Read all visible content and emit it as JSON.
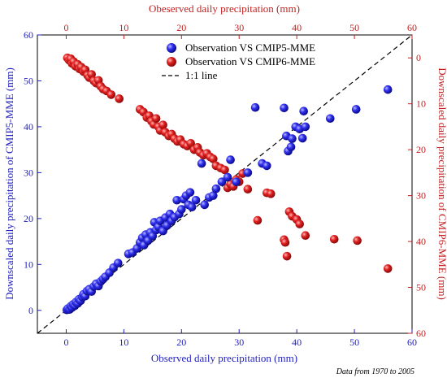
{
  "chart_data": {
    "type": "scatter",
    "title": "",
    "xlabel_bottom": "Observed daily precipitation (mm)",
    "ylabel_left": "Downscaled daily precipitation of CMIP5-MME (mm)",
    "xlabel_top": "Obeserved daily precipitation (mm)",
    "ylabel_right": "Downscaled daily precipitation of CMIP6-MME (mm)",
    "note": "Data from 1970 to 2005",
    "axes": {
      "bottom": {
        "min": -5,
        "max": 60,
        "ticks": [
          0,
          10,
          20,
          30,
          40,
          50,
          60
        ]
      },
      "left": {
        "min": -5,
        "max": 60,
        "ticks": [
          0,
          10,
          20,
          30,
          40,
          50,
          60
        ]
      },
      "top": {
        "min": -5,
        "max": 60,
        "ticks": [
          0,
          10,
          20,
          30,
          40,
          50,
          60
        ]
      },
      "right": {
        "min": -5,
        "max": 60,
        "ticks": [
          0,
          10,
          20,
          30,
          40,
          50,
          60
        ],
        "inverted": true
      }
    },
    "grid": false,
    "legend_position": "top-center",
    "legend": [
      {
        "label": "Observation VS CMIP5-MME",
        "marker": "sphere",
        "color": "#2424e0"
      },
      {
        "label": "Observation VS CMIP6-MME",
        "marker": "sphere",
        "color": "#d42020"
      },
      {
        "label": "1:1 line",
        "marker": "dashed-line",
        "color": "#000000"
      }
    ],
    "series": [
      {
        "name": "Observation VS CMIP5-MME",
        "axes": "bottom-left",
        "color": "#2424e0",
        "points": [
          [
            0.1,
            0.1
          ],
          [
            0.3,
            0.4
          ],
          [
            0.6,
            0.2
          ],
          [
            0.8,
            0.9
          ],
          [
            1.0,
            0.6
          ],
          [
            1.2,
            1.3
          ],
          [
            1.5,
            1.0
          ],
          [
            1.7,
            1.8
          ],
          [
            2.0,
            1.5
          ],
          [
            2.2,
            2.4
          ],
          [
            2.5,
            2.1
          ],
          [
            2.8,
            2.9
          ],
          [
            3.0,
            3.5
          ],
          [
            3.3,
            3.1
          ],
          [
            3.6,
            4.2
          ],
          [
            4.0,
            4.6
          ],
          [
            4.4,
            4.1
          ],
          [
            4.8,
            5.2
          ],
          [
            5.2,
            5.8
          ],
          [
            5.6,
            5.3
          ],
          [
            6.0,
            6.3
          ],
          [
            6.4,
            6.8
          ],
          [
            6.8,
            7.3
          ],
          [
            7.5,
            8.2
          ],
          [
            8.2,
            9.3
          ],
          [
            9.0,
            10.3
          ],
          [
            10.8,
            12.3
          ],
          [
            11.5,
            12.6
          ],
          [
            12.3,
            13.5
          ],
          [
            12.8,
            14.8
          ],
          [
            13.2,
            15.8
          ],
          [
            13.5,
            14.2
          ],
          [
            13.8,
            16.5
          ],
          [
            14.2,
            15.2
          ],
          [
            14.6,
            17.0
          ],
          [
            15.0,
            16.2
          ],
          [
            15.3,
            19.2
          ],
          [
            15.6,
            17.5
          ],
          [
            16.0,
            18.2
          ],
          [
            16.3,
            19.5
          ],
          [
            16.8,
            17.3
          ],
          [
            17.2,
            20.2
          ],
          [
            17.5,
            18.5
          ],
          [
            18.0,
            21.0
          ],
          [
            18.3,
            19.5
          ],
          [
            18.8,
            20.3
          ],
          [
            19.2,
            24.0
          ],
          [
            19.6,
            21.0
          ],
          [
            20.0,
            22.0
          ],
          [
            20.4,
            24.2
          ],
          [
            20.8,
            25.0
          ],
          [
            21.2,
            23.0
          ],
          [
            21.5,
            25.7
          ],
          [
            21.8,
            22.5
          ],
          [
            22.5,
            24.0
          ],
          [
            23.5,
            32.0
          ],
          [
            24.0,
            23.0
          ],
          [
            24.8,
            24.6
          ],
          [
            25.5,
            25.0
          ],
          [
            26.0,
            26.5
          ],
          [
            27.0,
            28.0
          ],
          [
            28.0,
            29.0
          ],
          [
            28.5,
            32.8
          ],
          [
            29.5,
            28.0
          ],
          [
            31.5,
            30.0
          ],
          [
            32.8,
            44.2
          ],
          [
            34.0,
            32.0
          ],
          [
            34.8,
            31.5
          ],
          [
            37.8,
            44.1
          ],
          [
            38.2,
            38.0
          ],
          [
            38.5,
            34.7
          ],
          [
            39.0,
            35.6
          ],
          [
            39.2,
            37.4
          ],
          [
            39.8,
            40.0
          ],
          [
            40.5,
            39.5
          ],
          [
            41.2,
            43.4
          ],
          [
            41.5,
            40.0
          ],
          [
            41.0,
            37.5
          ],
          [
            45.8,
            41.8
          ],
          [
            50.3,
            43.8
          ],
          [
            55.8,
            48.1
          ]
        ]
      },
      {
        "name": "Observation VS CMIP6-MME",
        "axes": "top-right",
        "color": "#d42020",
        "points": [
          [
            0.2,
            0.0
          ],
          [
            0.5,
            0.5
          ],
          [
            0.8,
            0.2
          ],
          [
            1.0,
            1.2
          ],
          [
            1.3,
            0.8
          ],
          [
            1.6,
            1.8
          ],
          [
            2.0,
            1.4
          ],
          [
            2.3,
            2.4
          ],
          [
            2.6,
            2.0
          ],
          [
            3.0,
            3.0
          ],
          [
            3.3,
            2.6
          ],
          [
            3.7,
            3.8
          ],
          [
            4.0,
            4.3
          ],
          [
            4.4,
            3.6
          ],
          [
            4.8,
            5.0
          ],
          [
            5.2,
            5.5
          ],
          [
            5.6,
            4.9
          ],
          [
            6.0,
            6.2
          ],
          [
            6.4,
            6.8
          ],
          [
            7.0,
            7.2
          ],
          [
            7.8,
            8.0
          ],
          [
            9.2,
            8.9
          ],
          [
            12.8,
            11.2
          ],
          [
            13.4,
            11.8
          ],
          [
            14.0,
            13.0
          ],
          [
            14.4,
            12.6
          ],
          [
            14.8,
            13.8
          ],
          [
            15.2,
            14.5
          ],
          [
            15.6,
            13.2
          ],
          [
            16.0,
            15.0
          ],
          [
            16.3,
            15.8
          ],
          [
            16.8,
            14.6
          ],
          [
            17.2,
            16.2
          ],
          [
            17.8,
            17.0
          ],
          [
            18.3,
            16.6
          ],
          [
            18.8,
            17.6
          ],
          [
            19.3,
            18.2
          ],
          [
            19.8,
            17.8
          ],
          [
            20.4,
            18.8
          ],
          [
            21.0,
            19.2
          ],
          [
            21.6,
            18.6
          ],
          [
            22.2,
            20.0
          ],
          [
            22.8,
            19.5
          ],
          [
            23.2,
            20.6
          ],
          [
            23.8,
            21.2
          ],
          [
            24.4,
            20.8
          ],
          [
            25.0,
            21.6
          ],
          [
            25.5,
            22.0
          ],
          [
            26.0,
            23.5
          ],
          [
            26.8,
            24.0
          ],
          [
            27.5,
            24.4
          ],
          [
            28.0,
            28.3
          ],
          [
            28.5,
            27.5
          ],
          [
            29.0,
            28.0
          ],
          [
            29.5,
            26.5
          ],
          [
            30.0,
            27.0
          ],
          [
            30.6,
            25.2
          ],
          [
            31.5,
            28.6
          ],
          [
            33.2,
            35.4
          ],
          [
            34.8,
            29.4
          ],
          [
            35.5,
            29.6
          ],
          [
            37.8,
            39.6
          ],
          [
            38.0,
            40.2
          ],
          [
            38.3,
            43.2
          ],
          [
            38.7,
            33.5
          ],
          [
            39.2,
            34.5
          ],
          [
            40.0,
            35.2
          ],
          [
            40.5,
            36.2
          ],
          [
            41.5,
            38.7
          ],
          [
            46.5,
            39.5
          ],
          [
            50.5,
            39.8
          ],
          [
            55.8,
            45.9
          ]
        ]
      }
    ]
  }
}
